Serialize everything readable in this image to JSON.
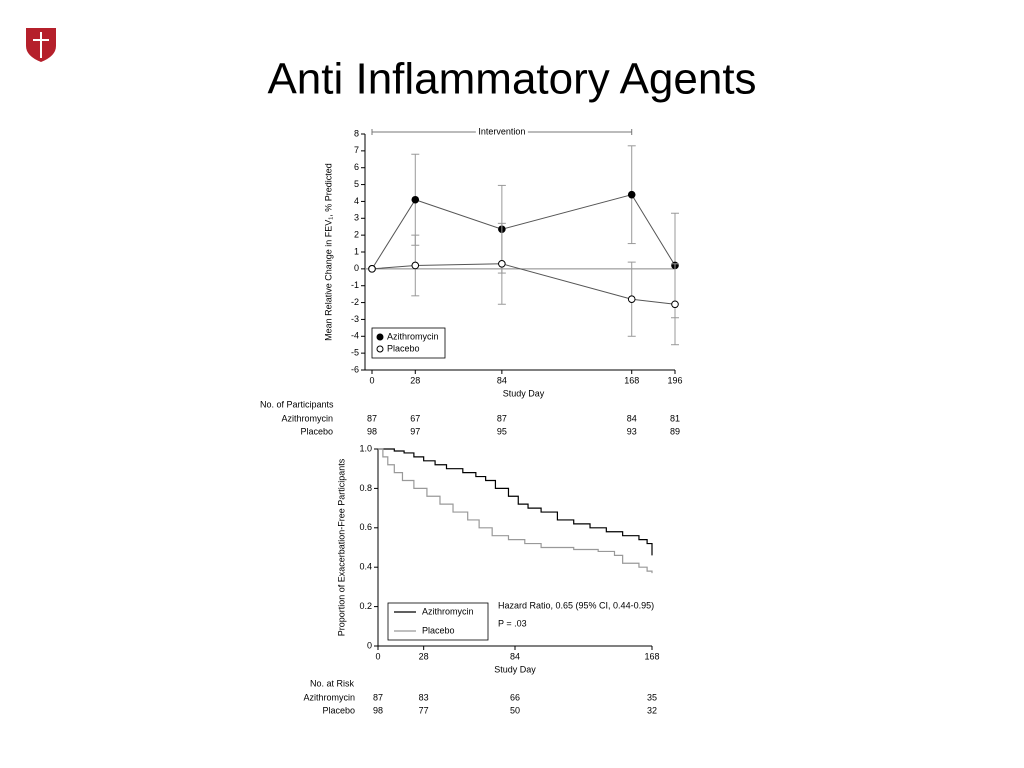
{
  "title": "Anti Inflammatory Agents",
  "chart_data": [
    {
      "type": "line",
      "x_label": "Study Day",
      "y_label": "Mean Relative Change in FEV₁, % Predicted",
      "x": [
        0,
        28,
        84,
        168,
        196
      ],
      "series": [
        {
          "name": "Azithromycin",
          "color": "#000000",
          "marker": "filled",
          "values": [
            0,
            4.1,
            2.35,
            4.4,
            0.2
          ],
          "errors": [
            0,
            2.7,
            2.6,
            2.9,
            3.1
          ]
        },
        {
          "name": "Placebo",
          "color": "#000000",
          "marker": "open",
          "values": [
            0,
            0.2,
            0.3,
            -1.8,
            -2.1
          ],
          "errors": [
            0,
            1.8,
            2.4,
            2.2,
            2.4
          ]
        }
      ],
      "xlim": [
        0,
        196
      ],
      "xticks": [
        0,
        28,
        84,
        168,
        196
      ],
      "ylim": [
        -6,
        8
      ],
      "yticks": [
        -6,
        -5,
        -4,
        -3,
        -2,
        -1,
        0,
        1,
        2,
        3,
        4,
        5,
        6,
        7,
        8
      ],
      "reference_line": 0,
      "intervention": {
        "label": "Intervention",
        "start": 0,
        "end": 168
      },
      "legend": "lower left",
      "table": {
        "title": "No. of Participants",
        "rows": [
          {
            "name": "Azithromycin",
            "values": [
              87,
              67,
              87,
              84,
              81
            ]
          },
          {
            "name": "Placebo",
            "values": [
              98,
              97,
              95,
              93,
              89
            ]
          }
        ]
      }
    },
    {
      "type": "step",
      "x_label": "Study Day",
      "y_label": "Proportion of Exacerbation-Free Participants",
      "series": [
        {
          "name": "Azithromycin",
          "color": "#000000",
          "x": [
            0,
            10,
            16,
            22,
            28,
            35,
            42,
            52,
            60,
            66,
            72,
            80,
            86,
            92,
            100,
            110,
            120,
            130,
            140,
            150,
            160,
            165,
            168
          ],
          "values": [
            1.0,
            0.99,
            0.98,
            0.96,
            0.94,
            0.92,
            0.9,
            0.88,
            0.86,
            0.84,
            0.8,
            0.76,
            0.72,
            0.7,
            0.68,
            0.64,
            0.62,
            0.6,
            0.58,
            0.56,
            0.54,
            0.52,
            0.46
          ]
        },
        {
          "name": "Placebo",
          "color": "#999999",
          "x": [
            0,
            3,
            6,
            10,
            15,
            22,
            30,
            38,
            46,
            55,
            62,
            70,
            80,
            90,
            100,
            120,
            135,
            145,
            150,
            160,
            165,
            168
          ],
          "values": [
            1.0,
            0.96,
            0.92,
            0.88,
            0.84,
            0.8,
            0.76,
            0.72,
            0.68,
            0.64,
            0.6,
            0.56,
            0.54,
            0.52,
            0.5,
            0.49,
            0.48,
            0.46,
            0.42,
            0.4,
            0.38,
            0.37
          ]
        }
      ],
      "xlim": [
        0,
        168
      ],
      "xticks": [
        0,
        28,
        84,
        168
      ],
      "ylim": [
        0,
        1
      ],
      "yticks": [
        0,
        0.2,
        0.4,
        0.6,
        0.8,
        {
          "value": 1,
          "label": "1.0"
        }
      ],
      "legend": "lower left",
      "annotations": [
        "Hazard Ratio, 0.65 (95% CI, 0.44-0.95)",
        "P = .03"
      ],
      "table": {
        "title": "No. at Risk",
        "x": [
          0,
          28,
          84,
          168
        ],
        "rows": [
          {
            "name": "Azithromycin",
            "values": [
              87,
              83,
              66,
              35
            ]
          },
          {
            "name": "Placebo",
            "values": [
              98,
              77,
              50,
              32
            ]
          }
        ]
      }
    }
  ]
}
